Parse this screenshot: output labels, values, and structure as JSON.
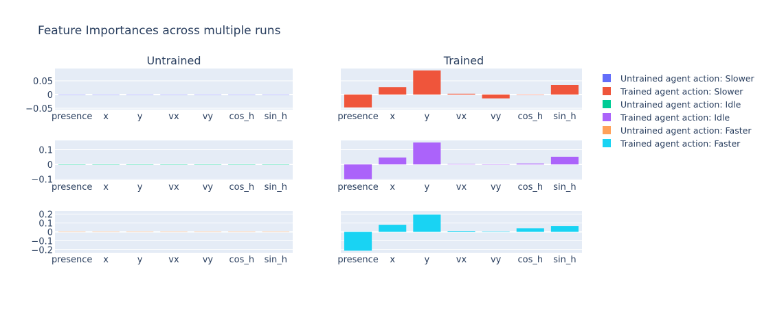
{
  "chart_data": {
    "type": "bar",
    "title": "Feature Importances across multiple runs",
    "categories": [
      "presence",
      "x",
      "y",
      "vx",
      "vy",
      "cos_h",
      "sin_h"
    ],
    "columns": [
      "Untrained",
      "Trained"
    ],
    "grid": true,
    "legend_placement": "right",
    "rows": [
      {
        "action": "Slower",
        "ylim": [
          -0.055,
          0.095
        ],
        "yticks": [
          -0.05,
          0,
          0.05
        ],
        "ytick_labels": [
          "−0.05",
          "0",
          "0.05"
        ],
        "series": [
          {
            "name": "Untrained agent action: Slower",
            "column": "Untrained",
            "color": "#636efa",
            "values": [
              0,
              0,
              0,
              0,
              0,
              0,
              0
            ]
          },
          {
            "name": "Trained agent action: Slower",
            "column": "Trained",
            "color": "#EF553B",
            "values": [
              -0.047,
              0.027,
              0.088,
              0.003,
              -0.014,
              0.0,
              0.035
            ]
          }
        ]
      },
      {
        "action": "Idle",
        "ylim": [
          -0.107,
          0.163
        ],
        "yticks": [
          -0.1,
          0,
          0.1
        ],
        "ytick_labels": [
          "−0.1",
          "0",
          "0.1"
        ],
        "series": [
          {
            "name": "Untrained agent action: Idle",
            "column": "Untrained",
            "color": "#00cc96",
            "values": [
              0,
              0,
              0,
              0,
              0,
              0,
              0
            ]
          },
          {
            "name": "Trained agent action: Idle",
            "column": "Trained",
            "color": "#ab63fa",
            "values": [
              -0.1,
              0.047,
              0.149,
              0.003,
              -0.001,
              0.006,
              0.052
            ]
          }
        ]
      },
      {
        "action": "Faster",
        "ylim": [
          -0.235,
          0.235
        ],
        "yticks": [
          -0.2,
          -0.1,
          0,
          0.1,
          0.2
        ],
        "ytick_labels": [
          "−0.2",
          "−0.1",
          "0",
          "0.1",
          "0.2"
        ],
        "series": [
          {
            "name": "Untrained agent action: Faster",
            "column": "Untrained",
            "color": "#FFA15A",
            "values": [
              0,
              0,
              0,
              0,
              0,
              0,
              0
            ]
          },
          {
            "name": "Trained agent action: Faster",
            "column": "Trained",
            "color": "#19d3f3",
            "values": [
              -0.21,
              0.08,
              0.194,
              0.01,
              0.005,
              0.04,
              0.065
            ]
          }
        ]
      }
    ]
  }
}
